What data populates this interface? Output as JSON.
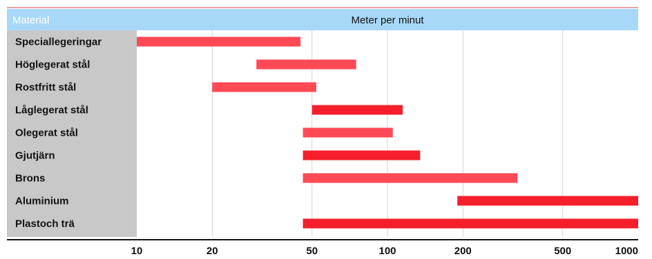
{
  "chart_data": {
    "type": "bar",
    "orientation": "horizontal-range",
    "header": {
      "category_column": "Material",
      "value_column": "Meter per minut"
    },
    "x_scale": "log",
    "xlim": [
      10,
      1000
    ],
    "x_ticks": [
      10,
      20,
      50,
      100,
      200,
      500,
      1000
    ],
    "x_tick_labels": [
      "10",
      "20",
      "50",
      "100",
      "200",
      "500",
      "1000"
    ],
    "grid": true,
    "categories": [
      "Speciallegeringar",
      "Höglegerat stål",
      "Rostfritt stål",
      "Låglegerat stål",
      "Olegerat stål",
      "Gjutjärn",
      "Brons",
      "Aluminium",
      "Plastoch trä"
    ],
    "ranges": [
      [
        10,
        45
      ],
      [
        30,
        75
      ],
      [
        20,
        52
      ],
      [
        50,
        115
      ],
      [
        46,
        105
      ],
      [
        46,
        135
      ],
      [
        46,
        330
      ],
      [
        190,
        1000
      ],
      [
        46,
        1000
      ]
    ],
    "colors": {
      "header_left": "#a8d8f8",
      "header_right": "#a8d8f8",
      "category_bg": "#c8c8c8",
      "bar_light": "#ff4a55",
      "bar_dark": "#f51f2c",
      "grid": "#d4d4d4",
      "axis": "#111111",
      "top_rule": "#c94a4a"
    },
    "bar_shades": [
      "light",
      "light",
      "light",
      "dark",
      "light",
      "dark",
      "light",
      "dark",
      "dark"
    ]
  }
}
